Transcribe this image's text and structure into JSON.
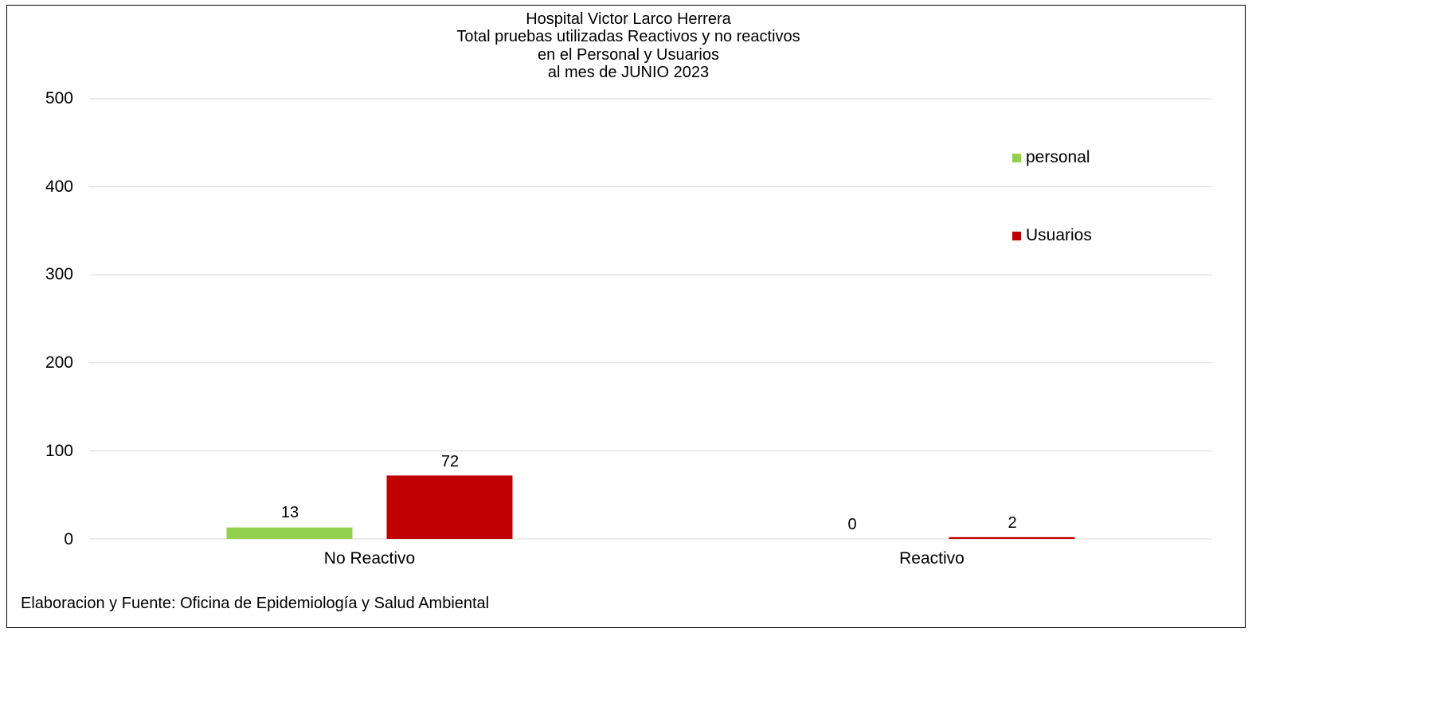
{
  "chart_data": {
    "type": "bar",
    "title": [
      "Hospital Victor Larco Herrera",
      "Total pruebas utilizadas Reactivos y no reactivos",
      "en el Personal y Usuarios",
      "al mes de JUNIO 2023"
    ],
    "categories": [
      "No Reactivo",
      "Reactivo"
    ],
    "series": [
      {
        "name": "personal",
        "values": [
          13,
          0
        ],
        "color": "#92D050"
      },
      {
        "name": "Usuarios",
        "values": [
          72,
          2
        ],
        "color": "#C00000"
      }
    ],
    "ylim": [
      0,
      500
    ],
    "yticks": [
      "0",
      "100",
      "200",
      "300",
      "400",
      "500"
    ],
    "grid": true,
    "legend_position": "right",
    "source": "Elaboracion y Fuente: Oficina de Epidemiología y Salud Ambiental"
  }
}
